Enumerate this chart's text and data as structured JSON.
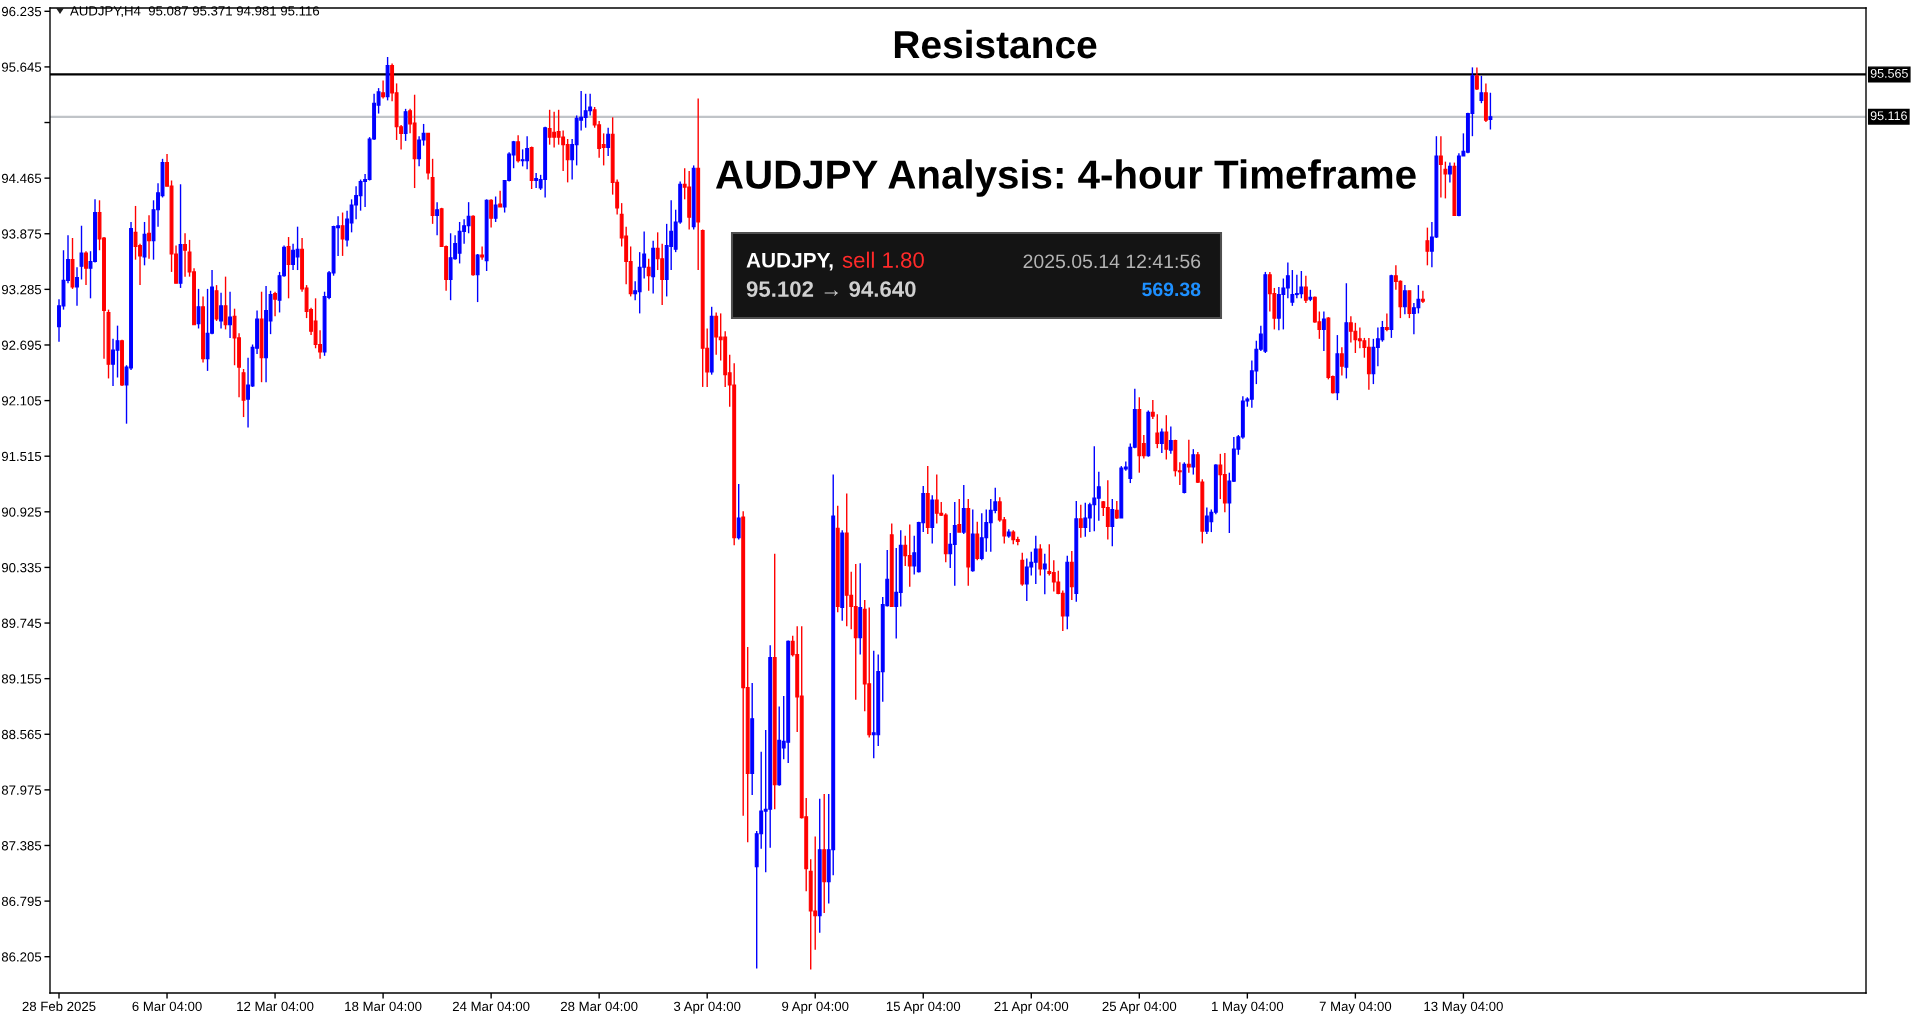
{
  "chart_data": {
    "type": "candlestick",
    "title": "AUDJPY Analysis: 4-hour Timeframe",
    "categories": [
      "28 Feb 2025",
      null,
      null,
      null,
      null,
      null,
      null,
      null,
      null,
      null,
      null,
      null,
      null,
      null,
      null,
      null,
      null,
      null,
      null,
      null,
      null,
      null,
      null,
      null,
      "6 Mar 04:00",
      null,
      null,
      null,
      null,
      null,
      null,
      null,
      null,
      null,
      null,
      null,
      null,
      null,
      null,
      null,
      null,
      null,
      null,
      null,
      null,
      null,
      null,
      null,
      "12 Mar 04:00",
      null,
      null,
      null,
      null,
      null,
      null,
      null,
      null,
      null,
      null,
      null,
      null,
      null,
      null,
      null,
      null,
      null,
      null,
      null,
      null,
      null,
      null,
      null,
      "18 Mar 04:00",
      null,
      null,
      null,
      null,
      null,
      null,
      null,
      null,
      null,
      null,
      null,
      null,
      null,
      null,
      null,
      null,
      null,
      null,
      null,
      null,
      null,
      null,
      null,
      "24 Mar 04:00",
      null,
      null,
      null,
      null,
      null,
      null,
      null,
      null,
      null,
      null,
      null,
      null,
      null,
      null,
      null,
      null,
      null,
      null,
      null,
      null,
      null,
      null,
      null,
      "28 Mar 04:00",
      null,
      null,
      null,
      null,
      null,
      null,
      null,
      null,
      null,
      null,
      null,
      null,
      null,
      null,
      null,
      null,
      null,
      null,
      null,
      null,
      null,
      null,
      null,
      "3 Apr 04:00",
      null,
      null,
      null,
      null,
      null,
      null,
      null,
      null,
      null,
      null,
      null,
      null,
      null,
      null,
      null,
      null,
      null,
      null,
      null,
      null,
      null,
      null,
      null,
      "9 Apr 04:00",
      null,
      null,
      null,
      null,
      null,
      null,
      null,
      null,
      null,
      null,
      null,
      null,
      null,
      null,
      null,
      null,
      null,
      null,
      null,
      null,
      null,
      null,
      null,
      "15 Apr 04:00",
      null,
      null,
      null,
      null,
      null,
      null,
      null,
      null,
      null,
      null,
      null,
      null,
      null,
      null,
      null,
      null,
      null,
      null,
      null,
      null,
      null,
      null,
      null,
      "21 Apr 04:00",
      null,
      null,
      null,
      null,
      null,
      null,
      null,
      null,
      null,
      null,
      null,
      null,
      null,
      null,
      null,
      null,
      null,
      null,
      null,
      null,
      null,
      null,
      null,
      "25 Apr 04:00",
      null,
      null,
      null,
      null,
      null,
      null,
      null,
      null,
      null,
      null,
      null,
      null,
      null,
      null,
      null,
      null,
      null,
      null,
      null,
      null,
      null,
      null,
      null,
      "1 May 04:00",
      null,
      null,
      null,
      null,
      null,
      null,
      null,
      null,
      null,
      null,
      null,
      null,
      null,
      null,
      null,
      null,
      null,
      null,
      null,
      null,
      null,
      null,
      null,
      "7 May 04:00",
      null,
      null,
      null,
      null,
      null,
      null,
      null,
      null,
      null,
      null,
      null,
      null,
      null,
      null,
      null,
      null,
      null,
      null,
      null,
      null,
      null,
      null,
      null,
      "13 May 04:00",
      null,
      null,
      null,
      null,
      null,
      null
    ],
    "ohlc": [
      [
        92.89,
        93.18,
        92.73,
        93.11
      ],
      [
        93.11,
        93.7,
        93.07,
        93.38
      ],
      [
        93.38,
        93.86,
        93.35,
        93.6
      ],
      [
        93.6,
        93.83,
        93.29,
        93.31
      ],
      [
        93.31,
        93.52,
        93.11,
        93.41
      ],
      [
        93.53,
        93.96,
        93.39,
        93.67
      ],
      [
        93.67,
        93.69,
        93.33,
        93.51
      ],
      [
        93.51,
        93.69,
        93.19,
        93.58
      ],
      [
        93.58,
        94.24,
        93.57,
        94.1
      ],
      [
        94.1,
        94.23,
        93.7,
        93.82
      ],
      [
        93.83,
        93.84,
        92.55,
        93.06
      ],
      [
        93.04,
        93.07,
        92.34,
        92.49
      ],
      [
        92.49,
        92.76,
        92.26,
        92.64
      ],
      [
        92.64,
        92.9,
        92.35,
        92.74
      ],
      [
        92.74,
        92.75,
        92.26,
        92.27
      ],
      [
        92.27,
        92.48,
        91.86,
        92.46
      ],
      [
        92.45,
        94.0,
        92.43,
        93.93
      ],
      [
        93.89,
        94.17,
        93.6,
        93.74
      ],
      [
        93.75,
        93.77,
        93.33,
        93.64
      ],
      [
        93.63,
        94.0,
        93.54,
        93.87
      ],
      [
        93.88,
        94.07,
        93.61,
        93.8
      ],
      [
        93.8,
        94.23,
        93.6,
        94.13
      ],
      [
        94.13,
        94.41,
        93.95,
        94.31
      ],
      [
        94.28,
        94.67,
        94.26,
        94.63
      ],
      [
        94.63,
        94.72,
        94.38,
        94.38
      ],
      [
        94.38,
        94.44,
        93.47,
        93.66
      ],
      [
        93.66,
        93.75,
        93.35,
        93.35
      ],
      [
        93.35,
        94.4,
        93.3,
        93.76
      ],
      [
        93.76,
        93.88,
        93.42,
        93.7
      ],
      [
        93.68,
        93.81,
        93.42,
        93.47
      ],
      [
        93.47,
        93.51,
        92.91,
        92.91
      ],
      [
        92.92,
        93.29,
        92.87,
        93.1
      ],
      [
        93.1,
        93.21,
        92.51,
        92.55
      ],
      [
        92.55,
        93.29,
        92.42,
        92.82
      ],
      [
        92.82,
        93.49,
        92.81,
        93.31
      ],
      [
        93.27,
        93.33,
        92.95,
        92.97
      ],
      [
        92.95,
        93.25,
        92.87,
        93.11
      ],
      [
        93.11,
        93.42,
        92.86,
        92.91
      ],
      [
        92.91,
        93.26,
        92.77,
        92.99
      ],
      [
        93.0,
        93.08,
        92.48,
        92.77
      ],
      [
        92.77,
        92.82,
        92.14,
        92.46
      ],
      [
        92.4,
        92.44,
        91.93,
        92.11
      ],
      [
        92.12,
        92.56,
        91.82,
        92.27
      ],
      [
        92.26,
        92.7,
        92.25,
        92.67
      ],
      [
        92.66,
        93.06,
        92.6,
        92.97
      ],
      [
        92.97,
        93.26,
        92.3,
        92.56
      ],
      [
        92.56,
        93.32,
        92.3,
        93.06
      ],
      [
        92.95,
        93.27,
        92.81,
        93.23
      ],
      [
        93.24,
        93.26,
        93.0,
        93.18
      ],
      [
        93.17,
        93.47,
        93.04,
        93.43
      ],
      [
        93.43,
        93.75,
        93.42,
        93.73
      ],
      [
        93.74,
        93.84,
        93.19,
        93.55
      ],
      [
        93.55,
        93.77,
        93.49,
        93.7
      ],
      [
        93.63,
        93.95,
        93.49,
        93.71
      ],
      [
        93.71,
        93.83,
        93.26,
        93.29
      ],
      [
        93.3,
        93.33,
        92.98,
        93.05
      ],
      [
        93.07,
        93.09,
        92.8,
        92.84
      ],
      [
        92.95,
        93.19,
        92.66,
        92.7
      ],
      [
        92.7,
        92.85,
        92.55,
        92.62
      ],
      [
        92.62,
        93.26,
        92.58,
        93.21
      ],
      [
        93.2,
        93.48,
        93.18,
        93.46
      ],
      [
        93.46,
        93.96,
        93.43,
        93.95
      ],
      [
        93.94,
        94.06,
        93.64,
        93.96
      ],
      [
        93.96,
        94.1,
        93.64,
        93.82
      ],
      [
        93.81,
        94.12,
        93.74,
        94.03
      ],
      [
        93.99,
        94.24,
        93.89,
        94.18
      ],
      [
        94.18,
        94.38,
        94.03,
        94.28
      ],
      [
        94.28,
        94.45,
        94.12,
        94.43
      ],
      [
        94.43,
        94.51,
        94.16,
        94.45
      ],
      [
        94.45,
        94.9,
        94.44,
        94.88
      ],
      [
        94.88,
        95.36,
        94.87,
        95.26
      ],
      [
        95.24,
        95.42,
        95.15,
        95.38
      ],
      [
        95.37,
        95.5,
        95.31,
        95.33
      ],
      [
        95.33,
        95.75,
        95.29,
        95.66
      ],
      [
        95.66,
        95.68,
        95.28,
        95.37
      ],
      [
        95.37,
        95.47,
        94.87,
        95.01
      ],
      [
        95.01,
        95.03,
        94.77,
        94.94
      ],
      [
        94.94,
        95.2,
        94.86,
        95.17
      ],
      [
        95.18,
        95.2,
        94.94,
        95.04
      ],
      [
        95.05,
        95.35,
        94.36,
        94.67
      ],
      [
        94.67,
        94.91,
        94.59,
        94.87
      ],
      [
        94.87,
        95.04,
        94.81,
        94.94
      ],
      [
        94.94,
        94.94,
        94.45,
        94.52
      ],
      [
        94.47,
        94.67,
        93.98,
        94.07
      ],
      [
        94.07,
        94.21,
        93.86,
        94.13
      ],
      [
        94.14,
        94.15,
        93.74,
        93.74
      ],
      [
        93.74,
        93.75,
        93.27,
        93.39
      ],
      [
        93.39,
        93.88,
        93.17,
        93.62
      ],
      [
        93.61,
        93.86,
        93.6,
        93.77
      ],
      [
        93.67,
        94.0,
        93.56,
        93.9
      ],
      [
        93.9,
        94.03,
        93.77,
        93.96
      ],
      [
        93.96,
        94.21,
        93.88,
        94.06
      ],
      [
        94.06,
        94.07,
        93.43,
        93.44
      ],
      [
        93.44,
        93.66,
        93.15,
        93.65
      ],
      [
        93.65,
        93.74,
        93.6,
        93.63
      ],
      [
        93.59,
        94.24,
        93.48,
        94.23
      ],
      [
        94.23,
        94.24,
        93.94,
        94.04
      ],
      [
        94.04,
        94.27,
        94.0,
        94.18
      ],
      [
        94.19,
        94.33,
        94.16,
        94.16
      ],
      [
        94.16,
        94.44,
        94.1,
        94.44
      ],
      [
        94.44,
        94.74,
        94.43,
        94.72
      ],
      [
        94.71,
        94.86,
        94.57,
        94.85
      ],
      [
        94.85,
        94.92,
        94.63,
        94.65
      ],
      [
        94.65,
        94.77,
        94.59,
        94.66
      ],
      [
        94.65,
        94.91,
        94.56,
        94.78
      ],
      [
        94.79,
        94.8,
        94.35,
        94.44
      ],
      [
        94.44,
        94.52,
        94.36,
        94.46
      ],
      [
        94.36,
        94.5,
        94.34,
        94.45
      ],
      [
        94.45,
        95.01,
        94.26,
        95.0
      ],
      [
        94.99,
        95.19,
        94.82,
        94.9
      ],
      [
        94.95,
        95.17,
        94.79,
        94.9
      ],
      [
        94.96,
        95.19,
        94.82,
        94.9
      ],
      [
        94.9,
        94.97,
        94.54,
        94.82
      ],
      [
        94.82,
        94.88,
        94.42,
        94.66
      ],
      [
        94.66,
        94.88,
        94.45,
        94.82
      ],
      [
        94.82,
        95.13,
        94.6,
        95.1
      ],
      [
        95.08,
        95.39,
        94.97,
        95.11
      ],
      [
        95.11,
        95.36,
        95.0,
        95.18
      ],
      [
        95.18,
        95.36,
        95.13,
        95.22
      ],
      [
        95.19,
        95.22,
        95.0,
        95.03
      ],
      [
        95.03,
        95.07,
        94.68,
        94.78
      ],
      [
        94.82,
        94.94,
        94.6,
        94.79
      ],
      [
        94.79,
        95.0,
        94.7,
        94.93
      ],
      [
        94.93,
        95.11,
        94.29,
        94.42
      ],
      [
        94.42,
        94.45,
        94.08,
        94.15
      ],
      [
        94.08,
        94.2,
        93.74,
        93.83
      ],
      [
        93.85,
        93.95,
        93.34,
        93.58
      ],
      [
        93.58,
        93.74,
        93.21,
        93.24
      ],
      [
        93.24,
        93.37,
        93.17,
        93.27
      ],
      [
        93.26,
        93.68,
        93.03,
        93.52
      ],
      [
        93.52,
        93.9,
        93.4,
        93.66
      ],
      [
        93.52,
        93.61,
        93.27,
        93.43
      ],
      [
        93.42,
        93.8,
        93.24,
        93.72
      ],
      [
        93.72,
        93.89,
        93.49,
        93.61
      ],
      [
        93.61,
        93.77,
        93.12,
        93.39
      ],
      [
        93.39,
        93.98,
        93.21,
        93.75
      ],
      [
        93.74,
        94.23,
        93.49,
        93.9
      ],
      [
        93.71,
        94.13,
        93.68,
        94.0
      ],
      [
        94.0,
        94.43,
        93.98,
        94.4
      ],
      [
        94.4,
        94.57,
        94.24,
        94.37
      ],
      [
        94.37,
        94.54,
        93.92,
        94.05
      ],
      [
        93.95,
        94.6,
        93.92,
        94.57
      ],
      [
        94.57,
        95.31,
        93.49,
        94.0
      ],
      [
        93.91,
        93.92,
        92.25,
        92.66
      ],
      [
        92.66,
        92.87,
        92.25,
        92.41
      ],
      [
        92.41,
        93.1,
        92.38,
        93.0
      ],
      [
        93.0,
        93.04,
        92.59,
        92.78
      ],
      [
        92.78,
        93.03,
        92.53,
        92.75
      ],
      [
        92.78,
        92.84,
        92.25,
        92.38
      ],
      [
        92.4,
        92.59,
        92.04,
        92.27
      ],
      [
        92.27,
        92.5,
        90.57,
        90.65
      ],
      [
        90.65,
        91.22,
        90.63,
        90.86
      ],
      [
        90.87,
        90.93,
        87.7,
        89.06
      ],
      [
        89.06,
        89.49,
        87.42,
        88.15
      ],
      [
        88.15,
        89.11,
        87.92,
        88.73
      ],
      [
        87.16,
        87.54,
        86.08,
        87.51
      ],
      [
        87.51,
        88.38,
        87.35,
        87.75
      ],
      [
        87.75,
        88.61,
        87.1,
        87.77
      ],
      [
        87.77,
        89.51,
        87.36,
        89.38
      ],
      [
        89.38,
        90.48,
        87.77,
        88.03
      ],
      [
        88.03,
        88.86,
        88.02,
        88.5
      ],
      [
        88.42,
        88.97,
        88.3,
        88.49
      ],
      [
        88.48,
        89.56,
        88.26,
        89.55
      ],
      [
        89.55,
        89.61,
        89.39,
        89.41
      ],
      [
        89.41,
        89.71,
        88.59,
        88.96
      ],
      [
        88.97,
        89.71,
        87.67,
        87.68
      ],
      [
        87.69,
        87.89,
        86.9,
        87.14
      ],
      [
        87.11,
        87.24,
        86.07,
        86.69
      ],
      [
        86.69,
        87.48,
        86.28,
        86.64
      ],
      [
        86.64,
        87.88,
        86.46,
        87.34
      ],
      [
        87.34,
        87.93,
        86.67,
        87.0
      ],
      [
        87.0,
        87.93,
        86.77,
        87.34
      ],
      [
        87.34,
        91.32,
        87.07,
        90.88
      ],
      [
        90.75,
        90.99,
        89.86,
        89.92
      ],
      [
        89.91,
        90.73,
        89.77,
        90.7
      ],
      [
        90.7,
        91.12,
        89.71,
        90.04
      ],
      [
        90.04,
        90.29,
        89.68,
        89.92
      ],
      [
        89.92,
        90.37,
        88.93,
        89.59
      ],
      [
        89.59,
        90.38,
        89.41,
        89.91
      ],
      [
        89.89,
        89.99,
        88.81,
        89.1
      ],
      [
        89.1,
        89.91,
        88.53,
        88.56
      ],
      [
        88.56,
        89.45,
        88.31,
        88.58
      ],
      [
        88.56,
        89.41,
        88.44,
        89.23
      ],
      [
        89.23,
        90.02,
        88.91,
        89.94
      ],
      [
        89.93,
        90.52,
        89.92,
        90.21
      ],
      [
        90.68,
        90.8,
        89.92,
        89.92
      ],
      [
        89.92,
        90.54,
        89.58,
        90.07
      ],
      [
        90.07,
        90.73,
        89.92,
        90.57
      ],
      [
        90.57,
        90.67,
        90.35,
        90.46
      ],
      [
        90.46,
        90.79,
        90.13,
        90.35
      ],
      [
        90.35,
        90.67,
        90.26,
        90.49
      ],
      [
        90.29,
        90.82,
        90.28,
        90.81
      ],
      [
        90.81,
        91.2,
        90.71,
        91.12
      ],
      [
        91.12,
        91.41,
        90.69,
        90.76
      ],
      [
        90.76,
        91.1,
        90.59,
        91.05
      ],
      [
        91.05,
        91.32,
        90.8,
        90.91
      ],
      [
        90.91,
        91.03,
        90.88,
        90.89
      ],
      [
        90.89,
        90.91,
        90.39,
        90.48
      ],
      [
        90.48,
        90.7,
        90.33,
        90.58
      ],
      [
        90.58,
        91.03,
        90.14,
        90.78
      ],
      [
        90.79,
        91.06,
        90.71,
        90.71
      ],
      [
        90.71,
        91.21,
        90.69,
        90.96
      ],
      [
        90.96,
        91.06,
        90.14,
        90.34
      ],
      [
        90.3,
        90.95,
        90.29,
        90.69
      ],
      [
        90.69,
        90.82,
        90.41,
        90.43
      ],
      [
        90.43,
        90.91,
        90.41,
        90.65
      ],
      [
        90.65,
        90.95,
        90.5,
        90.81
      ],
      [
        90.81,
        91.06,
        90.5,
        90.94
      ],
      [
        90.94,
        91.18,
        90.91,
        91.03
      ],
      [
        91.03,
        91.08,
        90.82,
        90.84
      ],
      [
        90.84,
        90.87,
        90.59,
        90.67
      ],
      [
        90.67,
        90.74,
        90.65,
        90.71
      ],
      [
        90.71,
        90.73,
        90.58,
        90.63
      ],
      [
        90.63,
        90.66,
        90.57,
        90.61
      ],
      [
        90.41,
        90.49,
        90.14,
        90.16
      ],
      [
        90.16,
        90.43,
        89.98,
        90.34
      ],
      [
        90.34,
        90.5,
        90.25,
        90.39
      ],
      [
        90.39,
        90.67,
        90.16,
        90.53
      ],
      [
        90.53,
        90.58,
        90.25,
        90.32
      ],
      [
        90.32,
        90.48,
        90.05,
        90.37
      ],
      [
        90.29,
        90.58,
        90.25,
        90.27
      ],
      [
        90.28,
        90.41,
        90.08,
        90.18
      ],
      [
        90.18,
        90.3,
        90.05,
        90.06
      ],
      [
        90.06,
        90.09,
        89.66,
        89.82
      ],
      [
        89.82,
        90.46,
        89.68,
        90.39
      ],
      [
        90.39,
        90.51,
        89.99,
        90.13
      ],
      [
        90.06,
        91.04,
        89.97,
        90.85
      ],
      [
        90.85,
        91.0,
        90.65,
        90.76
      ],
      [
        90.76,
        91.02,
        90.66,
        90.86
      ],
      [
        90.86,
        91.02,
        90.71,
        91.0
      ],
      [
        91.0,
        91.62,
        90.72,
        91.07
      ],
      [
        91.07,
        91.35,
        90.83,
        91.19
      ],
      [
        91.03,
        91.04,
        90.88,
        90.97
      ],
      [
        90.97,
        91.26,
        90.63,
        90.77
      ],
      [
        90.77,
        91.06,
        90.56,
        90.95
      ],
      [
        90.94,
        91.04,
        90.85,
        90.86
      ],
      [
        90.86,
        91.41,
        90.86,
        91.39
      ],
      [
        91.38,
        91.46,
        91.36,
        91.4
      ],
      [
        91.28,
        91.65,
        91.23,
        91.61
      ],
      [
        91.61,
        92.23,
        91.6,
        92.01
      ],
      [
        92.01,
        92.14,
        91.34,
        91.52
      ],
      [
        91.65,
        91.74,
        91.49,
        91.52
      ],
      [
        91.52,
        92.0,
        91.51,
        91.98
      ],
      [
        91.98,
        92.11,
        91.91,
        91.94
      ],
      [
        91.76,
        91.96,
        91.6,
        91.65
      ],
      [
        91.65,
        91.81,
        91.55,
        91.77
      ],
      [
        91.77,
        91.95,
        91.48,
        91.59
      ],
      [
        91.58,
        91.83,
        91.54,
        91.68
      ],
      [
        91.68,
        91.69,
        91.3,
        91.36
      ],
      [
        91.36,
        91.45,
        91.21,
        91.35
      ],
      [
        91.13,
        91.45,
        91.12,
        91.43
      ],
      [
        91.43,
        91.69,
        91.34,
        91.4
      ],
      [
        91.4,
        91.59,
        91.32,
        91.53
      ],
      [
        91.53,
        91.56,
        91.23,
        91.24
      ],
      [
        91.24,
        91.27,
        90.59,
        90.72
      ],
      [
        90.72,
        90.97,
        90.69,
        90.88
      ],
      [
        90.82,
        90.95,
        90.71,
        90.92
      ],
      [
        90.92,
        91.43,
        90.9,
        91.42
      ],
      [
        91.42,
        91.54,
        91.06,
        91.32
      ],
      [
        91.32,
        91.55,
        90.92,
        91.02
      ],
      [
        91.02,
        91.34,
        90.7,
        91.25
      ],
      [
        91.25,
        91.72,
        91.24,
        91.59
      ],
      [
        91.59,
        91.74,
        91.53,
        91.72
      ],
      [
        91.72,
        92.15,
        91.7,
        92.1
      ],
      [
        92.1,
        92.14,
        92.04,
        92.12
      ],
      [
        92.12,
        92.53,
        92.03,
        92.42
      ],
      [
        92.42,
        92.74,
        92.28,
        92.65
      ],
      [
        92.65,
        92.9,
        92.63,
        92.81
      ],
      [
        92.63,
        93.47,
        92.61,
        93.44
      ],
      [
        93.44,
        93.47,
        93.05,
        93.24
      ],
      [
        93.24,
        93.3,
        92.86,
        92.98
      ],
      [
        92.98,
        93.31,
        92.85,
        93.23
      ],
      [
        93.23,
        93.4,
        92.86,
        93.3
      ],
      [
        93.3,
        93.57,
        93.19,
        93.43
      ],
      [
        93.15,
        93.49,
        93.11,
        93.23
      ],
      [
        93.23,
        93.44,
        93.19,
        93.24
      ],
      [
        93.24,
        93.48,
        93.19,
        93.31
      ],
      [
        93.31,
        93.43,
        93.14,
        93.17
      ],
      [
        93.18,
        93.28,
        93.16,
        93.2
      ],
      [
        93.2,
        93.21,
        92.93,
        92.94
      ],
      [
        92.94,
        93.05,
        92.76,
        92.86
      ],
      [
        92.86,
        93.05,
        92.63,
        92.97
      ],
      [
        92.98,
        92.99,
        92.33,
        92.35
      ],
      [
        92.36,
        92.37,
        92.18,
        92.19
      ],
      [
        92.19,
        92.8,
        92.11,
        92.6
      ],
      [
        92.6,
        92.67,
        92.37,
        92.47
      ],
      [
        92.46,
        93.35,
        92.34,
        92.93
      ],
      [
        92.93,
        93.0,
        92.72,
        92.84
      ],
      [
        92.84,
        92.93,
        92.61,
        92.75
      ],
      [
        92.76,
        92.88,
        92.66,
        92.74
      ],
      [
        92.74,
        92.77,
        92.56,
        92.67
      ],
      [
        92.67,
        92.77,
        92.22,
        92.39
      ],
      [
        92.39,
        92.76,
        92.28,
        92.67
      ],
      [
        92.67,
        92.88,
        92.47,
        92.76
      ],
      [
        92.75,
        92.95,
        92.73,
        92.88
      ],
      [
        92.88,
        93.03,
        92.84,
        92.86
      ],
      [
        92.86,
        93.44,
        92.77,
        93.43
      ],
      [
        93.43,
        93.54,
        93.28,
        93.37
      ],
      [
        93.37,
        93.38,
        92.98,
        93.1
      ],
      [
        93.1,
        93.33,
        93.02,
        93.27
      ],
      [
        93.27,
        93.27,
        92.98,
        93.03
      ],
      [
        93.03,
        93.14,
        92.81,
        93.09
      ],
      [
        93.09,
        93.33,
        93.03,
        93.18
      ],
      [
        93.18,
        93.27,
        93.14,
        93.16
      ],
      [
        93.8,
        93.94,
        93.54,
        93.69
      ],
      [
        93.69,
        94.0,
        93.52,
        93.84
      ],
      [
        93.84,
        94.91,
        93.83,
        94.7
      ],
      [
        94.7,
        94.91,
        94.26,
        94.61
      ],
      [
        94.56,
        94.64,
        94.25,
        94.51
      ],
      [
        94.51,
        94.63,
        94.42,
        94.59
      ],
      [
        94.59,
        94.63,
        94.07,
        94.07
      ],
      [
        94.07,
        94.73,
        94.06,
        94.7
      ],
      [
        94.7,
        94.94,
        94.7,
        94.75
      ],
      [
        94.74,
        95.16,
        94.73,
        95.15
      ],
      [
        95.15,
        95.64,
        94.91,
        95.55
      ],
      [
        95.55,
        95.64,
        95.4,
        95.41
      ],
      [
        95.29,
        95.55,
        95.26,
        95.37
      ],
      [
        95.37,
        95.47,
        95.06,
        95.08
      ],
      [
        95.087,
        95.371,
        94.981,
        95.116
      ]
    ],
    "colors": [
      "#0000ff",
      "#0000ff",
      "#0000ff",
      "#ff0000",
      "#0000ff",
      "#0000ff",
      "#ff0000",
      "#0000ff",
      "#0000ff",
      "#ff0000",
      "#ff0000",
      "#ff0000",
      "#0000ff",
      "#0000ff",
      "#ff0000",
      "#0000ff",
      "#0000ff",
      "#ff0000",
      "#ff0000",
      "#0000ff",
      "#ff0000",
      "#0000ff",
      "#0000ff",
      "#0000ff",
      "#ff0000",
      "#ff0000",
      "#ff0000",
      "#0000ff",
      "#ff0000",
      "#ff0000",
      "#ff0000",
      "#0000ff",
      "#ff0000",
      "#0000ff",
      "#0000ff",
      "#ff0000",
      "#0000ff",
      "#ff0000",
      "#0000ff",
      "#ff0000",
      "#ff0000",
      "#ff0000",
      "#0000ff",
      "#0000ff",
      "#0000ff",
      "#ff0000",
      "#0000ff",
      "#0000ff",
      "#ff0000",
      "#0000ff",
      "#0000ff",
      "#ff0000",
      "#0000ff",
      "#0000ff",
      "#ff0000",
      "#ff0000",
      "#ff0000",
      "#ff0000",
      "#ff0000",
      "#0000ff",
      "#0000ff",
      "#0000ff",
      "#0000ff",
      "#ff0000",
      "#0000ff",
      "#0000ff",
      "#0000ff",
      "#0000ff",
      "#0000ff",
      "#0000ff",
      "#0000ff",
      "#0000ff",
      "#ff0000",
      "#0000ff",
      "#ff0000",
      "#ff0000",
      "#ff0000",
      "#0000ff",
      "#ff0000",
      "#ff0000",
      "#0000ff",
      "#0000ff",
      "#ff0000",
      "#ff0000",
      "#0000ff",
      "#ff0000",
      "#ff0000",
      "#0000ff",
      "#0000ff",
      "#0000ff",
      "#0000ff",
      "#0000ff",
      "#ff0000",
      "#0000ff",
      "#ff0000",
      "#0000ff",
      "#ff0000",
      "#0000ff",
      "#ff0000",
      "#0000ff",
      "#0000ff",
      "#0000ff",
      "#ff0000",
      "#0000ff",
      "#0000ff",
      "#ff0000",
      "#0000ff",
      "#0000ff",
      "#0000ff",
      "#ff0000",
      "#ff0000",
      "#ff0000",
      "#ff0000",
      "#ff0000",
      "#0000ff",
      "#0000ff",
      "#0000ff",
      "#0000ff",
      "#0000ff",
      "#ff0000",
      "#ff0000",
      "#ff0000",
      "#0000ff",
      "#ff0000",
      "#ff0000",
      "#ff0000",
      "#ff0000",
      "#ff0000",
      "#0000ff",
      "#0000ff",
      "#0000ff",
      "#ff0000",
      "#0000ff",
      "#ff0000",
      "#ff0000",
      "#0000ff",
      "#0000ff",
      "#0000ff",
      "#0000ff",
      "#ff0000",
      "#ff0000",
      "#0000ff",
      "#ff0000",
      "#ff0000",
      "#ff0000",
      "#0000ff",
      "#ff0000",
      "#ff0000",
      "#ff0000",
      "#ff0000",
      "#ff0000",
      "#0000ff",
      "#ff0000",
      "#ff0000",
      "#0000ff",
      "#0000ff",
      "#0000ff",
      "#0000ff",
      "#0000ff",
      "#ff0000",
      "#0000ff",
      "#0000ff",
      "#0000ff",
      "#ff0000",
      "#ff0000",
      "#ff0000",
      "#ff0000",
      "#ff0000",
      "#ff0000",
      "#0000ff",
      "#ff0000",
      "#0000ff",
      "#0000ff",
      "#ff0000",
      "#0000ff",
      "#ff0000",
      "#ff0000",
      "#ff0000",
      "#0000ff",
      "#ff0000",
      "#ff0000",
      "#0000ff",
      "#0000ff",
      "#0000ff",
      "#0000ff",
      "#ff0000",
      "#0000ff",
      "#0000ff",
      "#ff0000",
      "#ff0000",
      "#0000ff",
      "#0000ff",
      "#0000ff",
      "#ff0000",
      "#0000ff",
      "#ff0000",
      "#ff0000",
      "#ff0000",
      "#0000ff",
      "#0000ff",
      "#ff0000",
      "#0000ff",
      "#ff0000",
      "#0000ff",
      "#ff0000",
      "#0000ff",
      "#0000ff",
      "#0000ff",
      "#0000ff",
      "#ff0000",
      "#ff0000",
      "#0000ff",
      "#ff0000",
      "#ff0000",
      "#ff0000",
      "#0000ff",
      "#0000ff",
      "#0000ff",
      "#ff0000",
      "#0000ff",
      "#ff0000",
      "#ff0000",
      "#ff0000",
      "#ff0000",
      "#0000ff",
      "#ff0000",
      "#0000ff",
      "#ff0000",
      "#0000ff",
      "#0000ff",
      "#0000ff",
      "#0000ff",
      "#ff0000",
      "#ff0000",
      "#0000ff",
      "#ff0000",
      "#0000ff",
      "#0000ff",
      "#0000ff",
      "#0000ff",
      "#ff0000",
      "#ff0000",
      "#0000ff",
      "#ff0000",
      "#ff0000",
      "#0000ff",
      "#ff0000",
      "#0000ff",
      "#ff0000",
      "#ff0000",
      "#0000ff",
      "#ff0000",
      "#0000ff",
      "#ff0000",
      "#ff0000",
      "#0000ff",
      "#0000ff",
      "#0000ff",
      "#ff0000",
      "#ff0000",
      "#0000ff",
      "#0000ff",
      "#0000ff",
      "#0000ff",
      "#0000ff",
      "#0000ff",
      "#0000ff",
      "#0000ff",
      "#0000ff",
      "#ff0000",
      "#ff0000",
      "#0000ff",
      "#0000ff",
      "#0000ff",
      "#0000ff",
      "#0000ff",
      "#0000ff",
      "#ff0000",
      "#0000ff",
      "#ff0000",
      "#ff0000",
      "#0000ff",
      "#ff0000",
      "#ff0000",
      "#0000ff",
      "#ff0000",
      "#0000ff",
      "#ff0000",
      "#ff0000",
      "#ff0000",
      "#ff0000",
      "#ff0000",
      "#0000ff",
      "#0000ff",
      "#0000ff",
      "#ff0000",
      "#0000ff",
      "#ff0000",
      "#ff0000",
      "#0000ff",
      "#ff0000",
      "#0000ff",
      "#0000ff",
      "#ff0000",
      "#ff0000",
      "#0000ff",
      "#0000ff",
      "#ff0000",
      "#ff0000",
      "#0000ff",
      "#ff0000",
      "#0000ff",
      "#0000ff",
      "#0000ff",
      "#0000ff",
      "#ff0000",
      "#0000ff",
      "#ff0000",
      "#0000ff"
    ],
    "ylim": [
      85.82,
      96.27
    ],
    "yticks": [
      96.235,
      95.645,
      {
        "value": 95.055,
        "label": null
      },
      94.465,
      93.875,
      93.285,
      92.695,
      92.105,
      91.515,
      90.925,
      90.335,
      89.745,
      89.155,
      88.565,
      87.975,
      87.385,
      86.795,
      86.205
    ],
    "ref_lines": [
      {
        "axis": "y",
        "value": 95.565,
        "label": "95.565",
        "color": "#000000"
      },
      {
        "axis": "y",
        "value": 95.116,
        "label": "95.116",
        "color": "#c0c4c8"
      }
    ],
    "annotations": [
      "AUDJPY,H4  95.087 95.371 94.981 95.116",
      {
        "text": "Resistance",
        "y": 95.565
      },
      "AUDJPY,",
      "sell 1.80",
      "2025.05.14 12:41:56",
      "95.102 → 94.640",
      "569.38"
    ]
  }
}
